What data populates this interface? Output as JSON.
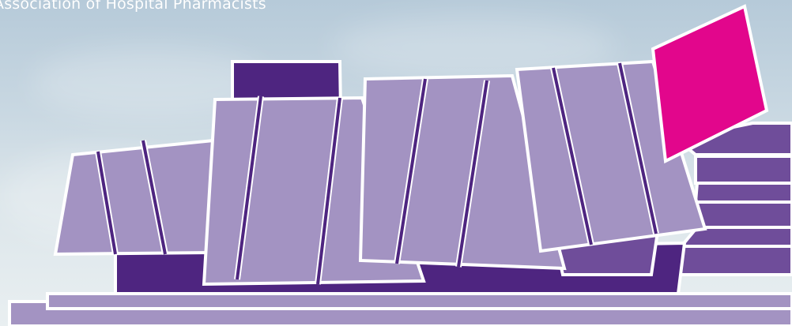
{
  "header": {
    "org_name": "Association of Hospital Pharmacists"
  },
  "palette": {
    "light_purple": "#a393c2",
    "mid_purple": "#6f4d9a",
    "dark_purple": "#4e2580",
    "magenta": "#e2068c",
    "outline": "#ffffff",
    "sky_top": "#b6cad9",
    "sky_bottom": "#e9eff1"
  }
}
